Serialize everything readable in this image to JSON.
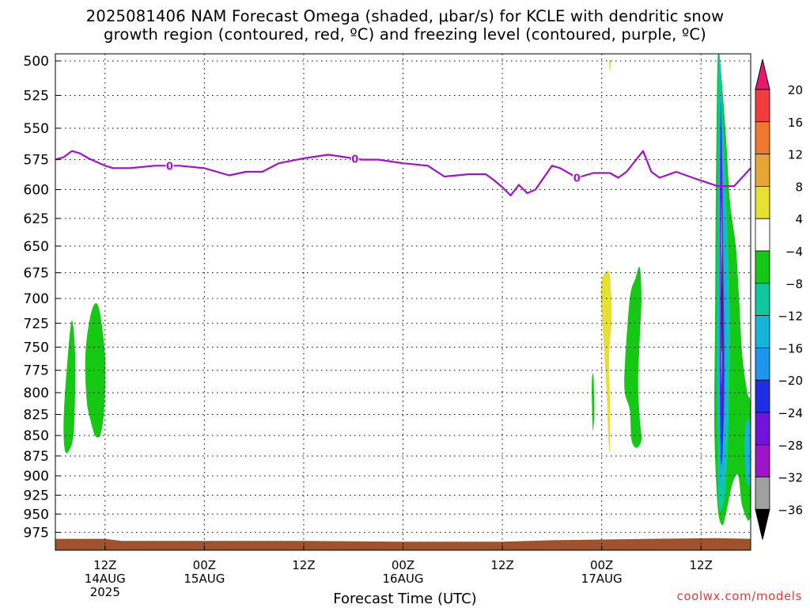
{
  "title_line1": "2025081406 NAM Forecast Omega (shaded, μbar/s) for KCLE with dendritic snow",
  "title_line2": "growth region (contoured, red, ºC) and freezing level (contoured, purple, ºC)",
  "credit": "coolwx.com/models",
  "chart_data": {
    "type": "heatmap",
    "title": "2025081406 NAM Forecast Omega (shaded, μbar/s) for KCLE with dendritic snow growth region (contoured, red, ºC) and freezing level (contoured, purple, ºC)",
    "xlabel": "Forecast Time (UTC)",
    "ylabel": "",
    "x_unit": "forecast hour from 2025-08-14 06Z",
    "xlim": [
      0,
      84
    ],
    "x_ticks": [
      {
        "hour": 6,
        "labels": [
          "12Z",
          "14AUG",
          "2025"
        ]
      },
      {
        "hour": 18,
        "labels": [
          "00Z",
          "15AUG"
        ]
      },
      {
        "hour": 30,
        "labels": [
          "12Z"
        ]
      },
      {
        "hour": 42,
        "labels": [
          "00Z",
          "16AUG"
        ]
      },
      {
        "hour": 54,
        "labels": [
          "12Z"
        ]
      },
      {
        "hour": 66,
        "labels": [
          "00Z",
          "17AUG"
        ]
      },
      {
        "hour": 78,
        "labels": [
          "12Z"
        ]
      }
    ],
    "y_ticks": [
      500,
      525,
      550,
      575,
      600,
      625,
      650,
      675,
      700,
      725,
      750,
      775,
      800,
      825,
      850,
      875,
      900,
      925,
      950,
      975
    ],
    "ylim": [
      1000,
      500
    ],
    "y_scale": "log-pressure",
    "grid": true,
    "colorbar": {
      "levels": [
        20,
        16,
        12,
        8,
        4,
        -4,
        -8,
        -12,
        -16,
        -20,
        -24,
        -28,
        -32,
        -36
      ],
      "colors": [
        "#e8186e",
        "#f03c3c",
        "#f0782a",
        "#e6a632",
        "#e6e032",
        "#ffffff",
        "#14c814",
        "#10c8a0",
        "#14b4dc",
        "#1e96f0",
        "#1e2ee6",
        "#6e14dc",
        "#a014c8",
        "#a0a0a0",
        "#000000"
      ]
    },
    "freezing_level": {
      "color": "#a014c8",
      "label": "0",
      "points": [
        [
          0,
          575
        ],
        [
          1,
          573
        ],
        [
          2,
          568
        ],
        [
          3,
          570
        ],
        [
          4,
          574
        ],
        [
          6,
          580
        ],
        [
          7,
          582
        ],
        [
          9,
          582
        ],
        [
          12,
          580
        ],
        [
          15,
          580
        ],
        [
          18,
          582
        ],
        [
          21,
          588
        ],
        [
          23,
          585
        ],
        [
          25,
          585
        ],
        [
          27,
          578
        ],
        [
          30,
          574
        ],
        [
          33,
          571
        ],
        [
          35,
          573
        ],
        [
          37,
          575
        ],
        [
          39,
          575
        ],
        [
          42,
          578
        ],
        [
          45,
          580
        ],
        [
          47,
          589
        ],
        [
          50,
          587
        ],
        [
          52,
          587
        ],
        [
          53,
          592
        ],
        [
          54,
          598
        ],
        [
          55,
          605
        ],
        [
          56,
          596
        ],
        [
          57,
          603
        ],
        [
          58,
          600
        ],
        [
          60,
          580
        ],
        [
          61,
          582
        ],
        [
          63,
          590
        ],
        [
          65,
          586
        ],
        [
          66,
          586
        ],
        [
          67,
          586
        ],
        [
          68,
          590
        ],
        [
          69,
          585
        ],
        [
          71,
          568
        ],
        [
          72,
          585
        ],
        [
          73,
          590
        ],
        [
          75,
          585
        ],
        [
          77,
          590
        ],
        [
          80,
          597
        ],
        [
          82,
          597
        ],
        [
          84,
          582
        ]
      ]
    },
    "omega_regions": [
      {
        "value_range": [
          -8,
          -4
        ],
        "color": "#14c814",
        "points": [
          [
            1.2,
            870
          ],
          [
            1.0,
            830
          ],
          [
            1.5,
            760
          ],
          [
            2.0,
            722
          ],
          [
            2.4,
            760
          ],
          [
            2.3,
            830
          ],
          [
            2.0,
            860
          ]
        ]
      },
      {
        "value_range": [
          -8,
          -4
        ],
        "color": "#14c814",
        "points": [
          [
            3.6,
            770
          ],
          [
            3.8,
            740
          ],
          [
            4.4,
            712
          ],
          [
            5.0,
            705
          ],
          [
            5.5,
            720
          ],
          [
            6.0,
            760
          ],
          [
            6.0,
            800
          ],
          [
            5.8,
            830
          ],
          [
            5.4,
            850
          ],
          [
            4.8,
            850
          ],
          [
            4.2,
            830
          ],
          [
            3.8,
            810
          ]
        ]
      },
      {
        "value_range": [
          4,
          8
        ],
        "color": "#e6e032",
        "points": [
          [
            65.9,
            690
          ],
          [
            66.4,
            675
          ],
          [
            67.0,
            678
          ],
          [
            67.2,
            720
          ],
          [
            66.9,
            760
          ],
          [
            67.0,
            810
          ],
          [
            67.0,
            870
          ],
          [
            66.8,
            850
          ],
          [
            66.6,
            800
          ],
          [
            66.2,
            740
          ]
        ]
      },
      {
        "value_range": [
          4,
          8
        ],
        "color": "#e6e032",
        "points": [
          [
            66.9,
            500
          ],
          [
            67.1,
            500
          ],
          [
            67.0,
            508
          ]
        ]
      },
      {
        "value_range": [
          -8,
          -4
        ],
        "color": "#14c814",
        "points": [
          [
            64.8,
            790
          ],
          [
            65.0,
            780
          ],
          [
            65.1,
            820
          ],
          [
            65.0,
            840
          ],
          [
            64.9,
            840
          ]
        ]
      },
      {
        "value_range": [
          -8,
          -4
        ],
        "color": "#14c814",
        "points": [
          [
            68.8,
            770
          ],
          [
            69.4,
            700
          ],
          [
            70.1,
            680
          ],
          [
            70.6,
            670
          ],
          [
            70.8,
            700
          ],
          [
            70.6,
            740
          ],
          [
            70.4,
            790
          ],
          [
            70.6,
            830
          ],
          [
            70.8,
            855
          ],
          [
            70.2,
            865
          ],
          [
            69.6,
            855
          ],
          [
            69.4,
            820
          ],
          [
            68.8,
            800
          ]
        ]
      },
      {
        "value_range": [
          -8,
          -4
        ],
        "color": "#14c814",
        "points": [
          [
            80.0,
            500
          ],
          [
            80.3,
            500
          ],
          [
            81.0,
            555
          ],
          [
            81.5,
            610
          ],
          [
            82.2,
            650
          ],
          [
            82.6,
            700
          ],
          [
            83.0,
            760
          ],
          [
            83.6,
            800
          ],
          [
            84.0,
            820
          ],
          [
            84.0,
            950
          ],
          [
            83.0,
            940
          ],
          [
            82.5,
            900
          ],
          [
            81.8,
            910
          ],
          [
            81.0,
            950
          ],
          [
            80.6,
            965
          ],
          [
            80.1,
            950
          ],
          [
            79.8,
            900
          ],
          [
            79.6,
            830
          ],
          [
            79.7,
            720
          ],
          [
            79.8,
            600
          ]
        ]
      },
      {
        "value_range": [
          -12,
          -8
        ],
        "color": "#10c8a0",
        "points": [
          [
            80.1,
            500
          ],
          [
            80.3,
            500
          ],
          [
            80.8,
            560
          ],
          [
            81.2,
            640
          ],
          [
            81.5,
            720
          ],
          [
            81.4,
            800
          ],
          [
            81.2,
            870
          ],
          [
            80.9,
            925
          ],
          [
            80.4,
            945
          ],
          [
            80.1,
            930
          ],
          [
            80.0,
            860
          ],
          [
            79.9,
            750
          ],
          [
            80.0,
            620
          ]
        ]
      },
      {
        "value_range": [
          -16,
          -12
        ],
        "color": "#14b4dc",
        "points": [
          [
            80.2,
            520
          ],
          [
            80.8,
            600
          ],
          [
            81.1,
            700
          ],
          [
            81.0,
            800
          ],
          [
            80.8,
            880
          ],
          [
            80.5,
            915
          ],
          [
            80.2,
            890
          ],
          [
            80.1,
            800
          ],
          [
            80.0,
            680
          ]
        ]
      },
      {
        "value_range": [
          -16,
          -12
        ],
        "color": "#14b4dc",
        "points": [
          [
            83.3,
            845
          ],
          [
            83.7,
            830
          ],
          [
            84.0,
            850
          ],
          [
            84.0,
            905
          ],
          [
            83.6,
            910
          ],
          [
            83.3,
            880
          ]
        ]
      },
      {
        "value_range": [
          -24,
          -20
        ],
        "color": "#1e2ee6",
        "points": [
          [
            80.4,
            610
          ],
          [
            80.7,
            680
          ],
          [
            80.8,
            790
          ],
          [
            80.6,
            870
          ],
          [
            80.4,
            880
          ],
          [
            80.3,
            800
          ],
          [
            80.3,
            700
          ]
        ]
      },
      {
        "value_range": [
          -28,
          -24
        ],
        "color": "#6e14dc",
        "points": [
          [
            80.4,
            530
          ],
          [
            80.6,
            600
          ],
          [
            80.7,
            700
          ],
          [
            80.6,
            800
          ],
          [
            80.4,
            840
          ],
          [
            80.3,
            750
          ],
          [
            80.3,
            620
          ]
        ]
      },
      {
        "value_range": [
          -36,
          -32
        ],
        "color": "#a0a0a0",
        "points": [
          [
            80.45,
            610
          ],
          [
            80.55,
            650
          ],
          [
            80.55,
            750
          ],
          [
            80.45,
            790
          ],
          [
            80.4,
            700
          ]
        ]
      },
      {
        "value_range": [
          -40,
          -36
        ],
        "color": "#000000",
        "points": [
          [
            80.48,
            655
          ],
          [
            80.55,
            690
          ],
          [
            80.52,
            750
          ],
          [
            80.45,
            740
          ]
        ]
      }
    ],
    "surface_pressure": [
      [
        0,
        984
      ],
      [
        6,
        984
      ],
      [
        8,
        987
      ],
      [
        18,
        987
      ],
      [
        30,
        987
      ],
      [
        42,
        988
      ],
      [
        54,
        988
      ],
      [
        60,
        986
      ],
      [
        66,
        985
      ],
      [
        72,
        984
      ],
      [
        80,
        983
      ],
      [
        84,
        984
      ]
    ]
  },
  "y_tick_labels": [
    "500",
    "525",
    "550",
    "575",
    "600",
    "625",
    "650",
    "675",
    "700",
    "725",
    "750",
    "775",
    "800",
    "825",
    "850",
    "875",
    "900",
    "925",
    "950",
    "975"
  ],
  "colorbar_labels": [
    "20",
    "16",
    "12",
    "8",
    "4",
    "−4",
    "−8",
    "−12",
    "−16",
    "−20",
    "−24",
    "−28",
    "−32",
    "−36"
  ],
  "xlabel": "Forecast Time (UTC)"
}
